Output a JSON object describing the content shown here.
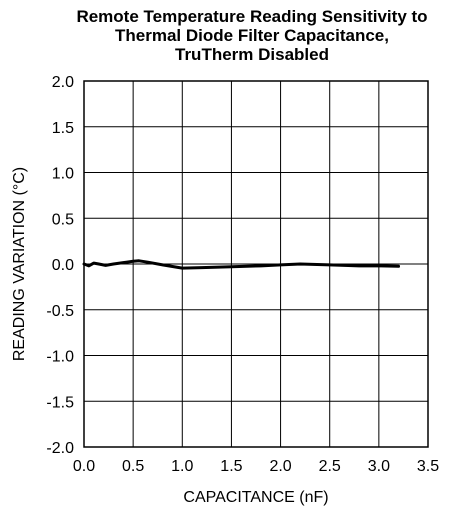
{
  "chart_data": {
    "type": "line",
    "title_lines": [
      "Remote Temperature Reading Sensitivity to",
      "Thermal Diode Filter Capacitance,",
      "TruTherm Disabled"
    ],
    "xlabel": "CAPACITANCE (nF)",
    "ylabel": "READING VARIATION (°C)",
    "xlim": [
      0,
      3.5
    ],
    "ylim": [
      -2,
      2
    ],
    "x_ticks": [
      "0.0",
      "0.5",
      "1.0",
      "1.5",
      "2.0",
      "2.5",
      "3.0",
      "3.5"
    ],
    "y_ticks": [
      "2.0",
      "1.5",
      "1.0",
      "0.5",
      "0.0",
      "-0.5",
      "-1.0",
      "-1.5",
      "-2.0"
    ],
    "grid": true,
    "legend": "none",
    "series_color": "#000000",
    "series": [
      {
        "x": [
          0.0,
          0.05,
          0.1,
          0.15,
          0.22,
          0.3,
          0.4,
          0.5,
          0.56,
          0.65,
          0.8,
          1.0,
          1.2,
          1.5,
          1.8,
          2.0,
          2.2,
          2.5,
          2.8,
          3.0,
          3.2
        ],
        "y": [
          0.0,
          -0.02,
          0.01,
          0.0,
          -0.015,
          0.0,
          0.015,
          0.03,
          0.035,
          0.02,
          -0.01,
          -0.045,
          -0.04,
          -0.03,
          -0.02,
          -0.01,
          0.0,
          -0.01,
          -0.02,
          -0.02,
          -0.025
        ]
      }
    ]
  }
}
